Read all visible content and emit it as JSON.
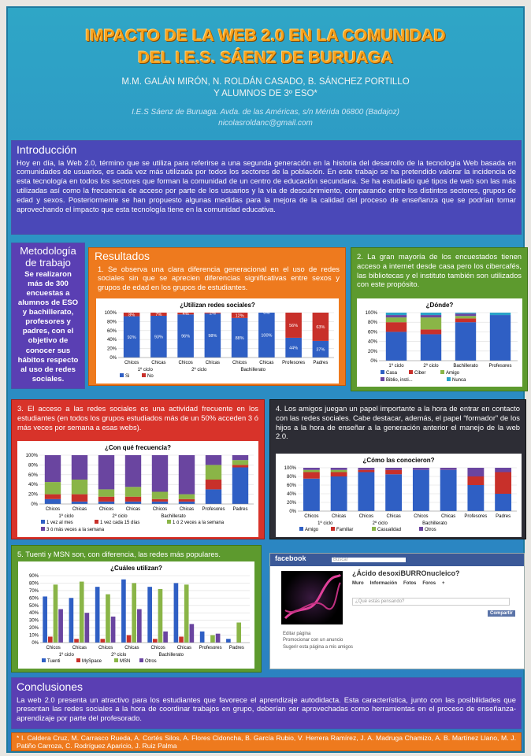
{
  "header": {
    "title_lines": [
      "IMPACTO DE LA WEB 2.0 EN LA COMUNIDAD",
      "DEL I.E.S. SÁENZ DE BURUAGA"
    ],
    "authors": "M.M. GALÁN MIRÓN, N. ROLDÁN CASADO, B. SÁNCHEZ PORTILLO",
    "authors_line2": "Y ALUMNOS DE 3º ESO*",
    "address": "I.E.S Sáenz de Buruaga. Avda. de las Américas, s/n Mérida 06800 (Badajoz)",
    "email": "nicolasroldanc@gmail.com"
  },
  "introduction": {
    "heading": "Introducción",
    "text": "Hoy en día, la Web 2.0, término que se utiliza para referirse a una segunda generación en la historia del desarrollo de la tecnología Web basada en comunidades de usuarios, es cada vez más utilizada por todos los sectores de la población. En este trabajo se ha pretendido valorar la incidencia de esta tecnología en todos los sectores que forman la comunidad de un centro de educación secundaria. Se ha estudiado qué tipos de web son las más utilizadas así como la frecuencia de acceso por parte de los usuarios y la vía de descubrimiento, comparando entre los distintos sectores, grupos de edad y sexos. Posteriormente se han propuesto algunas medidas para la mejora de la calidad del proceso de enseñanza que se podrían tomar aprovechando el impacto que esta tecnología tiene en la comunidad educativa."
  },
  "methodology": {
    "heading": "Metodología de trabajo",
    "text": "Se realizaron más de 300 encuestas a alumnos de ESO y bachillerato, profesores y padres, con el objetivo de conocer sus hábitos respecto al uso de redes sociales."
  },
  "results": {
    "heading": "Resultados"
  },
  "panels": [
    {
      "text": "1. Se observa una clara diferencia generacional en el uso de redes sociales sin que se aprecien diferencias significativas entre sexos y grupos de edad en los grupos de estudiantes.",
      "chart": {
        "type": "stacked_bar",
        "title": "¿Utilizan redes sociales?",
        "categories": [
          "Chicos",
          "Chicas",
          "Chicos",
          "Chicas",
          "Chicos",
          "Chicas",
          "Profesores",
          "Padres"
        ],
        "group_labels": [
          "1º ciclo",
          "2º ciclo",
          "Bachillerato"
        ],
        "ylim": [
          0,
          100
        ],
        "yticks": [
          {
            "value": 0,
            "label": "0%"
          },
          {
            "value": 20,
            "label": "20%"
          },
          {
            "value": 40,
            "label": "40%"
          },
          {
            "value": 60,
            "label": "60%"
          },
          {
            "value": 80,
            "label": "80%"
          },
          {
            "value": 100,
            "label": "100%"
          }
        ],
        "series": [
          {
            "name": "Si",
            "color": "#2f5fc4",
            "values": [
              92,
              93,
              96,
              98,
              88,
              100,
              44,
              37
            ],
            "value_labels": [
              "92%",
              "93%",
              "96%",
              "98%",
              "88%",
              "100%",
              "44%",
              "37%"
            ]
          },
          {
            "name": "No",
            "color": "#c8302a",
            "values": [
              8,
              7,
              4,
              2,
              12,
              0,
              56,
              63
            ],
            "value_labels": [
              "8%",
              "7%",
              "4%",
              "2%",
              "12%",
              "0%",
              "56%",
              "63%"
            ]
          }
        ]
      }
    },
    {
      "text": "2. La gran mayoría de los encuestados tienen acceso a internet desde casa pero los cibercafés, las bibliotecas y el instituto también son utilizados con este propósito.",
      "chart": {
        "type": "stacked_bar",
        "title": "¿Dónde?",
        "categories": [
          "1º ciclo",
          "2º ciclo",
          "Bachillerato",
          "Profesores"
        ],
        "ylim": [
          0,
          100
        ],
        "yticks": [
          {
            "value": 0,
            "label": "0%"
          },
          {
            "value": 20,
            "label": "20%"
          },
          {
            "value": 40,
            "label": "40%"
          },
          {
            "value": 60,
            "label": "60%"
          },
          {
            "value": 80,
            "label": "80%"
          },
          {
            "value": 100,
            "label": "100%"
          }
        ],
        "series": [
          {
            "name": "Casa",
            "color": "#2f5fc4",
            "values": [
              60,
              55,
              80,
              95
            ]
          },
          {
            "name": "Ciber",
            "color": "#c8302a",
            "values": [
              20,
              10,
              8,
              0
            ]
          },
          {
            "name": "Amigo",
            "color": "#8ab547",
            "values": [
              10,
              25,
              5,
              0
            ]
          },
          {
            "name": "Biblio, insti...",
            "color": "#6a45a0",
            "values": [
              5,
              5,
              5,
              0
            ]
          },
          {
            "name": "Nunca",
            "color": "#2aa3c8",
            "values": [
              5,
              5,
              2,
              5
            ]
          }
        ]
      }
    },
    {
      "text": "3. El acceso a las redes sociales es una actividad frecuente en los estudiantes (en todos los grupos estudiados más de un 50% acceden 3 ó más veces por semana a esas webs).",
      "chart": {
        "type": "stacked_bar",
        "title": "¿Con qué frecuencia?",
        "categories": [
          "Chicos",
          "Chicas",
          "Chicos",
          "Chicas",
          "Chicos",
          "Chicas",
          "Profesores",
          "Padres"
        ],
        "group_labels": [
          "1º ciclo",
          "2º ciclo",
          "Bachillerato"
        ],
        "ylim": [
          0,
          100
        ],
        "yticks": [
          {
            "value": 0,
            "label": "0%"
          },
          {
            "value": 20,
            "label": "20%"
          },
          {
            "value": 40,
            "label": "40%"
          },
          {
            "value": 60,
            "label": "60%"
          },
          {
            "value": 80,
            "label": "80%"
          },
          {
            "value": 100,
            "label": "100%"
          }
        ],
        "series": [
          {
            "name": "1 vez al mes",
            "color": "#2f5fc4",
            "values": [
              10,
              5,
              5,
              5,
              5,
              5,
              30,
              75
            ]
          },
          {
            "name": "1 vez cada 15 días",
            "color": "#c8302a",
            "values": [
              10,
              15,
              10,
              10,
              5,
              5,
              20,
              5
            ]
          },
          {
            "name": "1 ó 2 veces a la semana",
            "color": "#8ab547",
            "values": [
              25,
              30,
              15,
              20,
              15,
              10,
              30,
              10
            ]
          },
          {
            "name": "3 ó más veces a la semana",
            "color": "#6a45a0",
            "values": [
              55,
              50,
              70,
              65,
              75,
              80,
              20,
              10
            ]
          }
        ]
      }
    },
    {
      "text": "4. Los amigos juegan un papel importante a la hora de entrar en contacto con las redes sociales. Cabe destacar, además, el papel “formador” de los hijos a la hora de enseñar a la generación anterior el manejo de la web 2.0.",
      "chart": {
        "type": "stacked_bar",
        "title": "¿Cómo las conocieron?",
        "categories": [
          "Chicos",
          "Chicas",
          "Chicos",
          "Chicas",
          "Chicos",
          "Chicas",
          "Profesores",
          "Padres"
        ],
        "group_labels": [
          "1º ciclo",
          "2º ciclo",
          "Bachillerato"
        ],
        "ylim": [
          0,
          100
        ],
        "yticks": [
          {
            "value": 0,
            "label": "0%"
          },
          {
            "value": 20,
            "label": "20%"
          },
          {
            "value": 40,
            "label": "40%"
          },
          {
            "value": 60,
            "label": "60%"
          },
          {
            "value": 80,
            "label": "80%"
          },
          {
            "value": 100,
            "label": "100%"
          }
        ],
        "series": [
          {
            "name": "Amigo",
            "color": "#2f5fc4",
            "values": [
              75,
              80,
              90,
              85,
              95,
              95,
              60,
              40
            ]
          },
          {
            "name": "Familiar",
            "color": "#c8302a",
            "values": [
              15,
              10,
              5,
              10,
              0,
              0,
              20,
              50
            ]
          },
          {
            "name": "Casualidad",
            "color": "#8ab547",
            "values": [
              5,
              5,
              0,
              0,
              0,
              0,
              0,
              0
            ]
          },
          {
            "name": "Otros",
            "color": "#6a45a0",
            "values": [
              5,
              5,
              5,
              5,
              5,
              5,
              20,
              10
            ]
          }
        ]
      }
    },
    {
      "text": "5. Tuenti y MSN son, con diferencia, las redes más populares.",
      "chart": {
        "type": "grouped_bar",
        "title": "¿Cuáles utilizan?",
        "categories": [
          "Chicos",
          "Chicas",
          "Chicos",
          "Chicas",
          "Chicos",
          "Chicas",
          "Profesores",
          "Padres"
        ],
        "group_labels": [
          "1º ciclo",
          "2º ciclo",
          "Bachillerato"
        ],
        "ylim": [
          0,
          90
        ],
        "yticks": [
          {
            "value": 0,
            "label": "0%"
          },
          {
            "value": 10,
            "label": "10%"
          },
          {
            "value": 20,
            "label": "20%"
          },
          {
            "value": 30,
            "label": "30%"
          },
          {
            "value": 40,
            "label": "40%"
          },
          {
            "value": 50,
            "label": "50%"
          },
          {
            "value": 60,
            "label": "60%"
          },
          {
            "value": 70,
            "label": "70%"
          },
          {
            "value": 80,
            "label": "80%"
          },
          {
            "value": 90,
            "label": "90%"
          }
        ],
        "series": [
          {
            "name": "Tuenti",
            "color": "#2f5fc4",
            "values": [
              62,
              60,
              75,
              85,
              75,
              80,
              15,
              5
            ]
          },
          {
            "name": "MySpace",
            "color": "#c8302a",
            "values": [
              8,
              5,
              5,
              10,
              5,
              8,
              0,
              0
            ]
          },
          {
            "name": "MSN",
            "color": "#8ab547",
            "values": [
              78,
              82,
              65,
              80,
              72,
              78,
              10,
              27
            ]
          },
          {
            "name": "Otros",
            "color": "#6a45a0",
            "values": [
              45,
              40,
              35,
              45,
              15,
              25,
              12,
              0
            ]
          }
        ]
      }
    }
  ],
  "facebook": {
    "logo": "facebook",
    "search": "Buscar",
    "page_name": "¿Ácido desoxiBURROnucleico?",
    "tabs": [
      "Muro",
      "Información",
      "Fotos",
      "Foros",
      "+"
    ],
    "prompt": "¿Qué estás pensando?",
    "button": "Compartir",
    "sidebar": [
      "Editar página",
      "Promocionar con un anuncio",
      "Sugerir esta página a mis amigos"
    ]
  },
  "conclusions": {
    "heading": "Conclusiones",
    "text": "La web 2.0 presenta un atractivo para los estudiantes que favorece el aprendizaje autodidacta. Esta característica, junto con las posibilidades que presentan las redes sociales a la hora de coordinar trabajos en grupo, deberían ser aprovechadas como herramientas en el proceso de enseñanza-aprendizaje por parte del profesorado."
  },
  "footnote": "* I. Caldera Cruz, M. Carrasco Rueda, A. Cortés Silos, A. Flores Cidoncha, B. García Rubio, V. Herrera Ramírez, J. A. Madruga Chamizo, A. B. Martínez Llano, M. J. Patiño Carroza, C. Rodríguez Aparicio, J. Ruiz Palma"
}
